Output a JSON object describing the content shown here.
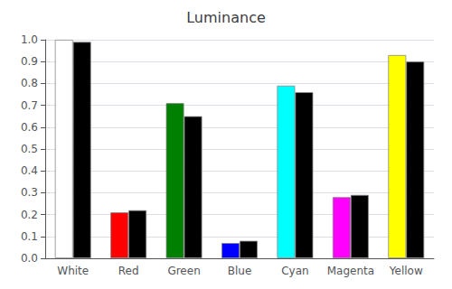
{
  "chart_data": {
    "type": "bar",
    "title": "Luminance",
    "categories": [
      "White",
      "Red",
      "Green",
      "Blue",
      "Cyan",
      "Magenta",
      "Yellow"
    ],
    "series": [
      {
        "colors": [
          "#ffffff",
          "#ff0000",
          "#008000",
          "#0000ff",
          "#00ffff",
          "#ff00ff",
          "#ffff00"
        ],
        "values": [
          1.0,
          0.21,
          0.71,
          0.07,
          0.79,
          0.28,
          0.93
        ]
      },
      {
        "color": "#000000",
        "values": [
          0.99,
          0.22,
          0.65,
          0.08,
          0.76,
          0.29,
          0.9
        ]
      }
    ],
    "ylim": [
      0.0,
      1.0
    ],
    "yticks": [
      {
        "value": 0.0,
        "label": "0.0"
      },
      0.1,
      0.2,
      0.3,
      0.4,
      0.5,
      0.6,
      0.7,
      0.8,
      0.9,
      {
        "value": 1.0,
        "label": "1.0"
      }
    ],
    "grid": true
  }
}
